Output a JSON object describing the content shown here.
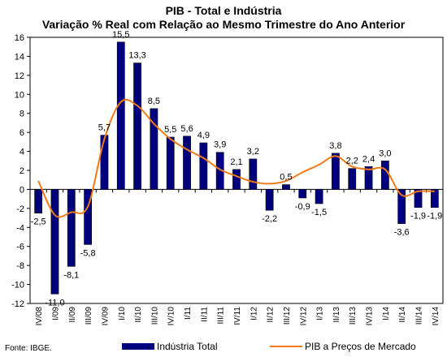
{
  "chart_data": {
    "type": "bar",
    "title": "PIB - Total e Indústria",
    "subtitle": "Variação % Real com Relação ao Mesmo Trimestre do Ano Anterior",
    "source": "Fonte: IBGE.",
    "ylim": [
      -12,
      16
    ],
    "yticks": [
      -12,
      -10,
      -8,
      -6,
      -4,
      -2,
      0,
      2,
      4,
      6,
      8,
      10,
      12,
      14,
      16
    ],
    "categories": [
      "IV/08",
      "I/09",
      "II/09",
      "III/09",
      "IV/09",
      "I/10",
      "II/10",
      "III/10",
      "IV/10",
      "I/11",
      "II/11",
      "III/11",
      "IV/11",
      "I/12",
      "II/12",
      "III/12",
      "IV/12",
      "I/13",
      "II/13",
      "III/13",
      "IV/13",
      "I/14",
      "II/14",
      "III/14",
      "IV/14"
    ],
    "x_tick_labels": [
      "IV/08",
      "I/09",
      "II/09",
      "III/09",
      "IV/09",
      "I/10",
      "II/10",
      "III/10",
      "IV/10",
      "I/11",
      "II/11",
      "III/11",
      "IV/11",
      "I/12",
      "II/12",
      "III/12",
      "IV/12",
      "I/13",
      "II/13",
      "III/13",
      "IV/13",
      "I/14",
      "II/14",
      "III/14",
      "IV/14"
    ],
    "grid": false,
    "legend_position": "bottom",
    "series": [
      {
        "name": "Indústria Total",
        "type": "bar",
        "color": "#00007f",
        "values": [
          -2.5,
          -11.0,
          -8.1,
          -5.8,
          5.7,
          15.5,
          13.3,
          8.5,
          5.5,
          5.6,
          4.9,
          3.9,
          2.1,
          3.2,
          -2.2,
          0.5,
          -0.9,
          -1.5,
          3.8,
          2.2,
          2.4,
          3.0,
          -3.6,
          -1.9,
          -1.9
        ],
        "labels": [
          "-2,5",
          "-11,0",
          "-8,1",
          "-5,8",
          "5,7",
          "15,5",
          "13,3",
          "8,5",
          "5,5",
          "5,6",
          "4,9",
          "3,9",
          "2,1",
          "3,2",
          "-2,2",
          "0,5",
          "-0,9",
          "-1,5",
          "3,8",
          "2,2",
          "2,4",
          "3,0",
          "-3,6",
          "-1,9",
          "-1,9"
        ]
      },
      {
        "name": "PIB a Preços de Mercado",
        "type": "line",
        "color": "#f07a18",
        "values": [
          0.9,
          -2.7,
          -2.4,
          -1.8,
          5.3,
          9.2,
          8.8,
          6.9,
          5.3,
          4.2,
          3.3,
          2.1,
          1.4,
          0.8,
          0.6,
          0.9,
          1.8,
          2.6,
          3.5,
          2.4,
          2.1,
          2.1,
          -0.6,
          -0.2,
          -0.2
        ]
      }
    ]
  }
}
